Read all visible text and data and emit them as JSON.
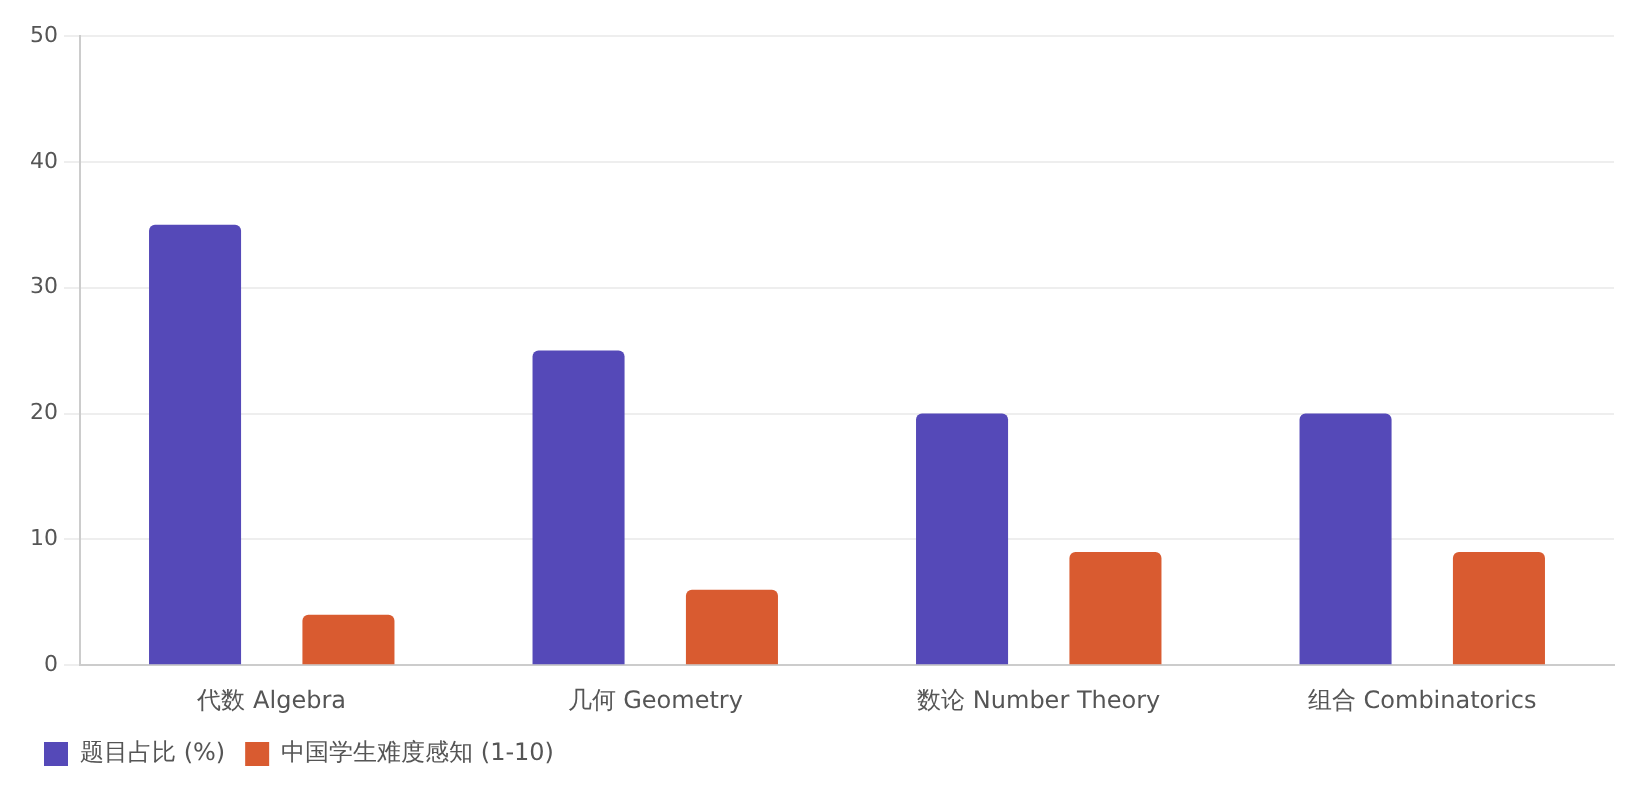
{
  "chart_data": {
    "type": "bar",
    "categories": [
      "代数 Algebra",
      "几何 Geometry",
      "数论 Number Theory",
      "组合 Combinatorics"
    ],
    "series": [
      {
        "name": "题目占比 (%)",
        "color": "#5549b8",
        "values": [
          35,
          25,
          20,
          20
        ]
      },
      {
        "name": "中国学生难度感知 (1-10)",
        "color": "#d95b30",
        "values": [
          4,
          6,
          9,
          9
        ]
      }
    ],
    "ylim": [
      0,
      50
    ],
    "yticks": [
      0,
      10,
      20,
      30,
      40,
      50
    ],
    "grid": "y",
    "legend": "bottom left"
  }
}
